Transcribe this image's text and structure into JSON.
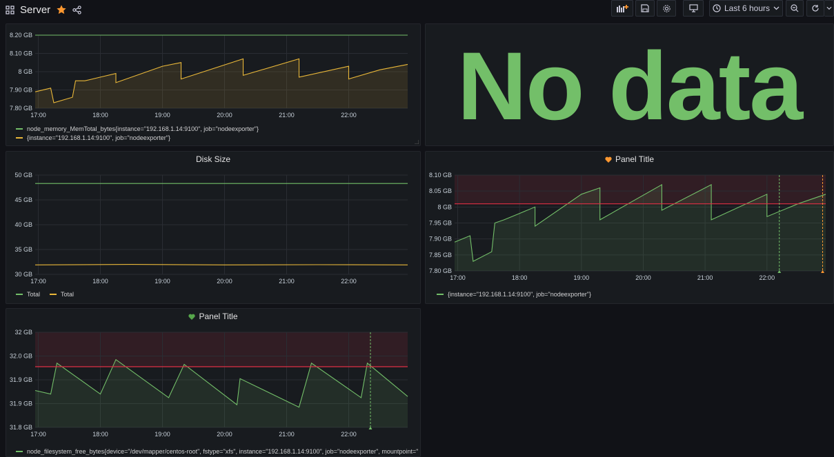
{
  "header": {
    "title": "Server",
    "time_range": "Last 6 hours",
    "colors": {
      "star": "#ff9830",
      "accent_green": "#73bf69",
      "accent_yellow": "#eab839",
      "threshold_red": "#e02f44"
    }
  },
  "panels": {
    "memory": {
      "legend": [
        {
          "label": "node_memory_MemTotal_bytes{instance=\"192.168.1.14:9100\", job=\"nodeexporter\"}",
          "color": "#73bf69"
        },
        {
          "label": "{instance=\"192.168.1.14:9100\", job=\"nodeexporter\"}",
          "color": "#eab839"
        }
      ]
    },
    "stat": {
      "text": "No data"
    },
    "disk": {
      "title": "Disk Size",
      "legend": [
        {
          "label": "Total",
          "color": "#73bf69"
        },
        {
          "label": "Total",
          "color": "#eab839"
        }
      ]
    },
    "alert_top": {
      "title": "Panel Title",
      "heart_color": "#ff9830",
      "legend": [
        {
          "label": "{instance=\"192.168.1.14:9100\", job=\"nodeexporter\"}",
          "color": "#73bf69"
        }
      ]
    },
    "alert_bottom": {
      "title": "Panel Title",
      "heart_color": "#56a64b",
      "legend": [
        {
          "label": "node_filesystem_free_bytes{device=\"/dev/mapper/centos-root\", fstype=\"xfs\", instance=\"192.168.1.14:9100\", job=\"nodeexporter\", mountpoint=\"",
          "color": "#73bf69"
        }
      ]
    }
  },
  "chart_data": [
    {
      "id": "memory",
      "type": "line",
      "title": "",
      "x": [
        "17:00",
        "18:00",
        "19:00",
        "20:00",
        "21:00",
        "22:00"
      ],
      "y_ticks": [
        "8.20 GB",
        "8.10 GB",
        "8 GB",
        "7.90 GB",
        "7.80 GB"
      ],
      "ylim": [
        7.8,
        8.2
      ],
      "grid": true,
      "series": [
        {
          "name": "node_memory_MemTotal_bytes{instance=\"192.168.1.14:9100\", job=\"nodeexporter\"}",
          "color": "#73bf69",
          "fill": false,
          "points": [
            [
              16.95,
              8.2
            ],
            [
              22.95,
              8.2
            ]
          ]
        },
        {
          "name": "{instance=\"192.168.1.14:9100\", job=\"nodeexporter\"}",
          "color": "#eab839",
          "fill": true,
          "points": [
            [
              16.95,
              7.89
            ],
            [
              17.2,
              7.91
            ],
            [
              17.25,
              7.83
            ],
            [
              17.55,
              7.86
            ],
            [
              17.6,
              7.95
            ],
            [
              17.75,
              7.95
            ],
            [
              18.0,
              7.97
            ],
            [
              18.25,
              7.99
            ],
            [
              18.25,
              7.94
            ],
            [
              19.0,
              8.03
            ],
            [
              19.3,
              8.05
            ],
            [
              19.3,
              7.96
            ],
            [
              20.3,
              8.07
            ],
            [
              20.3,
              7.98
            ],
            [
              21.2,
              8.07
            ],
            [
              21.2,
              7.97
            ],
            [
              22.0,
              8.03
            ],
            [
              22.0,
              7.96
            ],
            [
              22.5,
              8.01
            ],
            [
              22.95,
              8.04
            ]
          ]
        }
      ]
    },
    {
      "id": "disk",
      "type": "line",
      "title": "Disk Size",
      "x": [
        "17:00",
        "18:00",
        "19:00",
        "20:00",
        "21:00",
        "22:00"
      ],
      "y_ticks": [
        "50 GB",
        "45 GB",
        "40 GB",
        "35 GB",
        "30 GB"
      ],
      "ylim": [
        30,
        50
      ],
      "grid": true,
      "series": [
        {
          "name": "Total",
          "color": "#73bf69",
          "fill": false,
          "points": [
            [
              16.95,
              48.3
            ],
            [
              22.95,
              48.3
            ]
          ]
        },
        {
          "name": "Total",
          "color": "#eab839",
          "fill": false,
          "points": [
            [
              16.95,
              31.9
            ],
            [
              18.5,
              32.0
            ],
            [
              20.0,
              31.9
            ],
            [
              21.5,
              31.95
            ],
            [
              22.95,
              31.9
            ]
          ]
        }
      ]
    },
    {
      "id": "alert_top",
      "type": "line",
      "title": "Panel Title",
      "x": [
        "17:00",
        "18:00",
        "19:00",
        "20:00",
        "21:00",
        "22:00"
      ],
      "y_ticks": [
        "8.10 GB",
        "8.05 GB",
        "8 GB",
        "7.95 GB",
        "7.90 GB",
        "7.85 GB",
        "7.80 GB"
      ],
      "ylim": [
        7.8,
        8.1
      ],
      "grid": true,
      "threshold": 8.01,
      "series": [
        {
          "name": "{instance=\"192.168.1.14:9100\", job=\"nodeexporter\"}",
          "color": "#73bf69",
          "fill": true,
          "points": [
            [
              16.95,
              7.89
            ],
            [
              17.2,
              7.91
            ],
            [
              17.25,
              7.83
            ],
            [
              17.55,
              7.86
            ],
            [
              17.6,
              7.95
            ],
            [
              17.75,
              7.96
            ],
            [
              18.0,
              7.98
            ],
            [
              18.25,
              8.0
            ],
            [
              18.25,
              7.94
            ],
            [
              19.0,
              8.04
            ],
            [
              19.3,
              8.06
            ],
            [
              19.3,
              7.96
            ],
            [
              20.3,
              8.07
            ],
            [
              20.3,
              7.99
            ],
            [
              21.1,
              8.07
            ],
            [
              21.1,
              7.96
            ],
            [
              22.0,
              8.04
            ],
            [
              22.0,
              7.97
            ],
            [
              22.5,
              8.01
            ],
            [
              22.95,
              8.04
            ]
          ]
        }
      ]
    },
    {
      "id": "alert_bottom",
      "type": "line",
      "title": "Panel Title",
      "x": [
        "17:00",
        "18:00",
        "19:00",
        "20:00",
        "21:00",
        "22:00"
      ],
      "y_ticks": [
        "32 GB",
        "32.0 GB",
        "31.9 GB",
        "31.9 GB",
        "31.8 GB"
      ],
      "ylim": [
        0,
        4
      ],
      "grid": true,
      "threshold": 2.55,
      "series": [
        {
          "name": "node_filesystem_free_bytes{device=\"/dev/mapper/centos-root\", fstype=\"xfs\", instance=\"192.168.1.14:9100\", job=\"nodeexporter\", mountpoint=\"",
          "color": "#73bf69",
          "fill": true,
          "points": [
            [
              16.95,
              1.55
            ],
            [
              17.2,
              1.4
            ],
            [
              17.3,
              2.7
            ],
            [
              18.0,
              1.4
            ],
            [
              18.25,
              2.85
            ],
            [
              19.1,
              1.25
            ],
            [
              19.35,
              2.65
            ],
            [
              20.2,
              0.95
            ],
            [
              20.25,
              2.05
            ],
            [
              21.2,
              0.85
            ],
            [
              21.4,
              2.7
            ],
            [
              22.2,
              1.25
            ],
            [
              22.3,
              2.7
            ],
            [
              22.95,
              1.3
            ]
          ]
        }
      ]
    }
  ]
}
